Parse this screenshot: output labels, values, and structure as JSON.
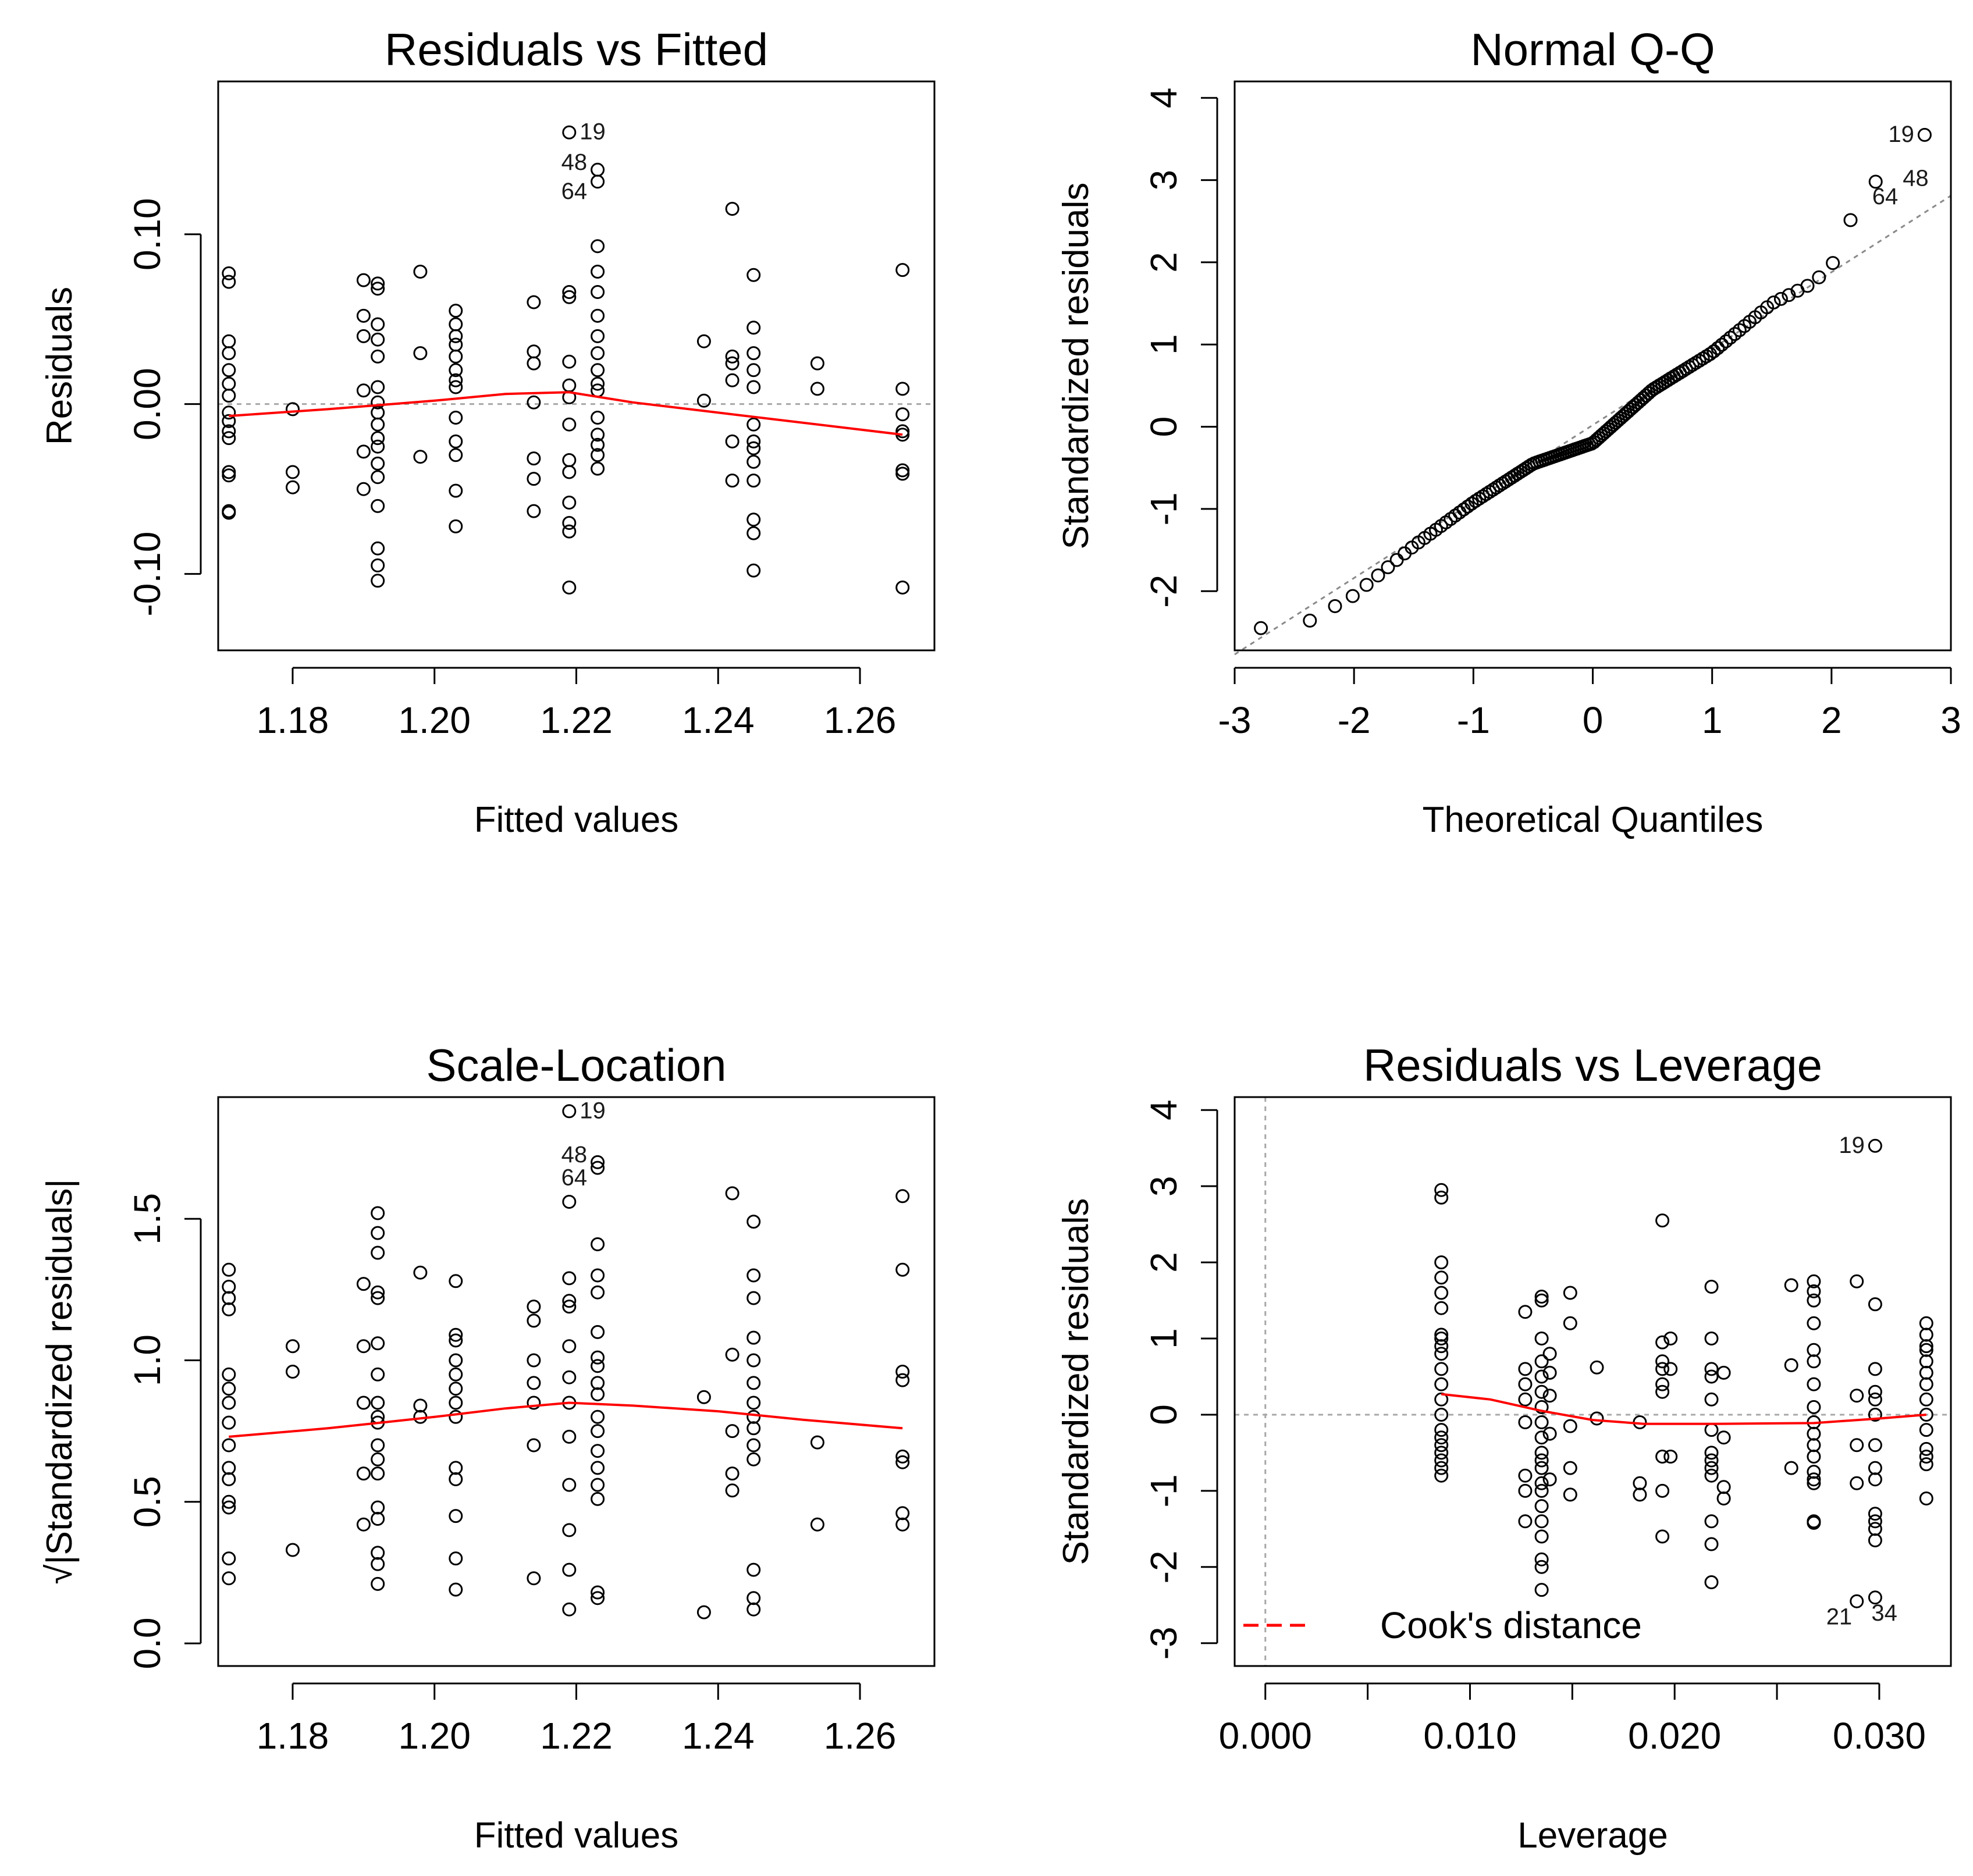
{
  "chart_data": [
    {
      "id": "rvf",
      "type": "scatter",
      "title": "Residuals vs Fitted",
      "xlabel": "Fitted values",
      "ylabel": "Residuals",
      "xlim": [
        1.1695,
        1.2705
      ],
      "ylim": [
        -0.145,
        0.19
      ],
      "xticks": [
        1.18,
        1.2,
        1.22,
        1.24,
        1.26
      ],
      "xtick_labels": [
        "1.18",
        "1.20",
        "1.22",
        "1.24",
        "1.26"
      ],
      "yticks": [
        -0.1,
        0.0,
        0.1
      ],
      "ytick_labels": [
        "-0.10",
        "0.00",
        "0.10"
      ],
      "ref_line": {
        "y": 0
      },
      "columns": [
        {
          "x": 1.171,
          "y": [
            0.077,
            0.072,
            0.037,
            0.03,
            0.02,
            0.012,
            0.005,
            -0.005,
            -0.01,
            -0.016,
            -0.02,
            -0.04,
            -0.042,
            -0.063,
            -0.064
          ]
        },
        {
          "x": 1.18,
          "y": [
            -0.003,
            -0.04,
            -0.049
          ]
        },
        {
          "x": 1.19,
          "y": [
            0.073,
            0.052,
            0.04,
            0.008,
            -0.028,
            -0.05
          ]
        },
        {
          "x": 1.192,
          "y": [
            0.071,
            0.068,
            0.047,
            0.038,
            0.028,
            0.01,
            0.001,
            -0.005,
            -0.012,
            -0.02,
            -0.025,
            -0.035,
            -0.043,
            -0.06,
            -0.085,
            -0.095,
            -0.104
          ]
        },
        {
          "x": 1.198,
          "y": [
            0.078,
            0.03,
            -0.031
          ]
        },
        {
          "x": 1.203,
          "y": [
            0.055,
            0.047,
            0.04,
            0.035,
            0.028,
            0.02,
            0.014,
            0.01,
            -0.008,
            -0.022,
            -0.03,
            -0.051,
            -0.072
          ]
        },
        {
          "x": 1.214,
          "y": [
            0.06,
            0.031,
            0.024,
            0.001,
            -0.032,
            -0.044,
            -0.063
          ]
        },
        {
          "x": 1.219,
          "y": [
            0.16,
            0.066,
            0.063,
            0.025,
            0.011,
            0.004,
            -0.012,
            -0.033,
            -0.04,
            -0.058,
            -0.07,
            -0.075,
            -0.108
          ]
        },
        {
          "x": 1.223,
          "y": [
            0.138,
            0.131,
            0.093,
            0.078,
            0.066,
            0.052,
            0.04,
            0.03,
            0.02,
            0.012,
            0.008,
            -0.008,
            -0.018,
            -0.024,
            -0.03,
            -0.038
          ]
        },
        {
          "x": 1.238,
          "y": [
            0.037,
            0.002
          ]
        },
        {
          "x": 1.242,
          "y": [
            0.115,
            0.028,
            0.024,
            0.014,
            -0.022,
            -0.045
          ]
        },
        {
          "x": 1.245,
          "y": [
            0.076,
            0.045,
            0.03,
            0.02,
            0.01,
            -0.012,
            -0.022,
            -0.026,
            -0.034,
            -0.045,
            -0.068,
            -0.076,
            -0.098
          ]
        },
        {
          "x": 1.254,
          "y": [
            0.024,
            0.009
          ]
        },
        {
          "x": 1.266,
          "y": [
            0.079,
            0.009,
            -0.006,
            -0.016,
            -0.018,
            -0.039,
            -0.041,
            -0.108
          ]
        }
      ],
      "smoother": {
        "x": [
          1.171,
          1.185,
          1.2,
          1.21,
          1.219,
          1.228,
          1.238,
          1.25,
          1.266
        ],
        "y": [
          -0.007,
          -0.003,
          0.002,
          0.006,
          0.007,
          0.001,
          -0.004,
          -0.01,
          -0.018
        ]
      },
      "annotations": [
        {
          "text": "19",
          "x": 1.219,
          "y": 0.16
        },
        {
          "text": "48",
          "x": 1.223,
          "y": 0.138
        },
        {
          "text": "64",
          "x": 1.223,
          "y": 0.131
        }
      ]
    },
    {
      "id": "qq",
      "type": "scatter",
      "title": "Normal Q-Q",
      "xlabel": "Theoretical Quantiles",
      "ylabel": "Standardized residuals",
      "xlim": [
        -3,
        3
      ],
      "ylim": [
        -2.72,
        4.2
      ],
      "xticks": [
        -3,
        -2,
        -1,
        0,
        1,
        2,
        3
      ],
      "xtick_labels": [
        "-3",
        "-2",
        "-1",
        "0",
        "1",
        "2",
        "3"
      ],
      "yticks": [
        -2,
        -1,
        0,
        1,
        2,
        3,
        4
      ],
      "ytick_labels": [
        "-2",
        "-1",
        "0",
        "1",
        "2",
        "3",
        "4"
      ],
      "ref_line": {
        "intercept": 0.02,
        "slope": 0.93
      },
      "quantile_curve": {
        "x": [
          -2.78,
          -2.42,
          -2.0,
          -1.5,
          -1.0,
          -0.5,
          0.0,
          0.5,
          1.0,
          1.5,
          1.85,
          2.05,
          2.25,
          2.4,
          2.78
        ],
        "y": [
          -2.45,
          -2.4,
          -2.05,
          -1.45,
          -0.92,
          -0.45,
          -0.2,
          0.45,
          0.9,
          1.5,
          1.75,
          2.05,
          2.9,
          3.0,
          3.55
        ]
      },
      "n_points": 130,
      "annotations": [
        {
          "text": "19",
          "x": 2.78,
          "y": 3.55
        },
        {
          "text": "48",
          "x": 2.45,
          "y": 3.0
        },
        {
          "text": "64",
          "x": 2.38,
          "y": 2.92
        }
      ]
    },
    {
      "id": "sl",
      "type": "scatter",
      "title": "Scale-Location",
      "xlabel": "Fitted values",
      "ylabel": "√|Standardized residuals|",
      "xlim": [
        1.1695,
        1.2705
      ],
      "ylim": [
        -0.08,
        1.93
      ],
      "xticks": [
        1.18,
        1.2,
        1.22,
        1.24,
        1.26
      ],
      "xtick_labels": [
        "1.18",
        "1.20",
        "1.22",
        "1.24",
        "1.26"
      ],
      "yticks": [
        0.0,
        0.5,
        1.0,
        1.5
      ],
      "ytick_labels": [
        "0.0",
        "0.5",
        "1.0",
        "1.5"
      ],
      "columns": [
        {
          "x": 1.171,
          "y": [
            1.32,
            1.26,
            1.22,
            1.18,
            0.95,
            0.9,
            0.85,
            0.78,
            0.7,
            0.62,
            0.58,
            0.5,
            0.48,
            0.3,
            0.23
          ]
        },
        {
          "x": 1.18,
          "y": [
            1.05,
            0.96,
            0.33
          ]
        },
        {
          "x": 1.19,
          "y": [
            1.27,
            1.05,
            0.85,
            0.6,
            0.42
          ]
        },
        {
          "x": 1.192,
          "y": [
            1.52,
            1.45,
            1.38,
            1.24,
            1.22,
            1.06,
            0.95,
            0.85,
            0.8,
            0.78,
            0.7,
            0.65,
            0.6,
            0.48,
            0.44,
            0.32,
            0.28,
            0.21
          ]
        },
        {
          "x": 1.198,
          "y": [
            1.31,
            0.84,
            0.8
          ]
        },
        {
          "x": 1.203,
          "y": [
            1.28,
            1.09,
            1.07,
            1.0,
            0.95,
            0.9,
            0.85,
            0.8,
            0.62,
            0.58,
            0.45,
            0.3,
            0.19
          ]
        },
        {
          "x": 1.214,
          "y": [
            1.19,
            1.14,
            1.0,
            0.92,
            0.85,
            0.7,
            0.23
          ]
        },
        {
          "x": 1.219,
          "y": [
            1.88,
            1.56,
            1.29,
            1.21,
            1.19,
            1.05,
            0.94,
            0.85,
            0.73,
            0.56,
            0.4,
            0.26,
            0.12
          ]
        },
        {
          "x": 1.223,
          "y": [
            1.7,
            1.68,
            1.41,
            1.3,
            1.24,
            1.1,
            1.01,
            0.98,
            0.92,
            0.88,
            0.8,
            0.75,
            0.68,
            0.62,
            0.56,
            0.51,
            0.18,
            0.16
          ]
        },
        {
          "x": 1.238,
          "y": [
            0.87,
            0.11
          ]
        },
        {
          "x": 1.242,
          "y": [
            1.59,
            1.02,
            0.75,
            0.6,
            0.54
          ]
        },
        {
          "x": 1.245,
          "y": [
            1.49,
            1.3,
            1.22,
            1.08,
            1.0,
            0.92,
            0.85,
            0.8,
            0.76,
            0.7,
            0.65,
            0.26,
            0.16,
            0.12
          ]
        },
        {
          "x": 1.254,
          "y": [
            0.71,
            0.42
          ]
        },
        {
          "x": 1.266,
          "y": [
            1.58,
            1.32,
            0.96,
            0.93,
            0.66,
            0.64,
            0.46,
            0.42
          ]
        }
      ],
      "smoother": {
        "x": [
          1.171,
          1.185,
          1.2,
          1.21,
          1.219,
          1.228,
          1.24,
          1.252,
          1.266
        ],
        "y": [
          0.73,
          0.76,
          0.8,
          0.83,
          0.85,
          0.84,
          0.82,
          0.79,
          0.76
        ]
      },
      "annotations": [
        {
          "text": "19",
          "x": 1.219,
          "y": 1.88
        },
        {
          "text": "48",
          "x": 1.223,
          "y": 1.7
        },
        {
          "text": "64",
          "x": 1.223,
          "y": 1.68
        }
      ]
    },
    {
      "id": "rvl",
      "type": "scatter",
      "title": "Residuals vs Leverage",
      "xlabel": "Leverage",
      "ylabel": "Standardized residuals",
      "xlim": [
        -0.0015,
        0.0335
      ],
      "ylim": [
        -3.3,
        4.17
      ],
      "xticks": [
        0.0,
        0.005,
        0.01,
        0.015,
        0.02,
        0.025,
        0.03
      ],
      "xtick_labels": [
        "0.000",
        "",
        "0.010",
        "",
        "0.020",
        "",
        "0.030"
      ],
      "yticks": [
        -3,
        -2,
        -1,
        0,
        1,
        2,
        3,
        4
      ],
      "ytick_labels": [
        "-3",
        "-2",
        "-1",
        "0",
        "1",
        "2",
        "3",
        "4"
      ],
      "ref_lines": {
        "y": 0,
        "x": 0
      },
      "columns": [
        {
          "x": 0.0086,
          "y": [
            2.95,
            2.85,
            2.0,
            1.8,
            1.6,
            1.4,
            1.05,
            1.0,
            0.9,
            0.8,
            0.6,
            0.4,
            0.2,
            0.0,
            -0.2,
            -0.3,
            -0.4,
            -0.5,
            -0.6,
            -0.7,
            -0.8
          ]
        },
        {
          "x": 0.0127,
          "y": [
            1.35,
            0.6,
            0.4,
            0.2,
            -0.1,
            -0.8,
            -1.0,
            -1.4
          ]
        },
        {
          "x": 0.0135,
          "y": [
            1.55,
            1.5,
            1.0,
            0.7,
            0.5,
            0.3,
            0.1,
            -0.1,
            -0.3,
            -0.5,
            -0.6,
            -0.7,
            -0.9,
            -1.0,
            -1.2,
            -1.4,
            -1.6,
            -1.9,
            -2.0,
            -2.3
          ]
        },
        {
          "x": 0.0139,
          "y": [
            0.8,
            0.55,
            0.25,
            -0.25,
            -0.85
          ]
        },
        {
          "x": 0.0149,
          "y": [
            1.6,
            1.2,
            -0.15,
            -0.7,
            -1.05
          ]
        },
        {
          "x": 0.0162,
          "y": [
            0.62,
            -0.05
          ]
        },
        {
          "x": 0.0183,
          "y": [
            -0.1,
            -0.9,
            -1.05
          ]
        },
        {
          "x": 0.0194,
          "y": [
            2.55,
            0.95,
            0.7,
            0.6,
            0.4,
            0.3,
            -0.55,
            -1.0,
            -1.6
          ]
        },
        {
          "x": 0.0198,
          "y": [
            1.0,
            0.6,
            -0.55
          ]
        },
        {
          "x": 0.0218,
          "y": [
            1.68,
            1.0,
            0.6,
            0.5,
            0.2,
            -0.2,
            -0.5,
            -0.6,
            -0.7,
            -0.8,
            -1.4,
            -1.7,
            -2.2
          ]
        },
        {
          "x": 0.0224,
          "y": [
            0.55,
            -0.3,
            -0.95,
            -1.1
          ]
        },
        {
          "x": 0.0257,
          "y": [
            1.7,
            0.65,
            -0.7
          ]
        },
        {
          "x": 0.0268,
          "y": [
            1.75,
            1.62,
            1.5,
            1.2,
            0.85,
            0.7,
            0.4,
            0.1,
            -0.1,
            -0.25,
            -0.4,
            -0.55,
            -0.75,
            -0.85,
            -0.9,
            -1.4,
            -1.42
          ]
        },
        {
          "x": 0.0289,
          "y": [
            1.75,
            0.25,
            -0.4,
            -0.9,
            -2.45
          ]
        },
        {
          "x": 0.0298,
          "y": [
            3.53,
            1.45,
            0.6,
            0.3,
            0.2,
            0.0,
            -0.4,
            -0.7,
            -0.85,
            -1.3,
            -1.4,
            -1.5,
            -1.65,
            -2.4
          ]
        },
        {
          "x": 0.0323,
          "y": [
            1.2,
            1.05,
            0.9,
            0.85,
            0.7,
            0.55,
            0.4,
            0.2,
            0.0,
            -0.2,
            -0.45,
            -0.55,
            -0.65,
            -1.1
          ]
        }
      ],
      "smoother": {
        "x": [
          0.0086,
          0.011,
          0.0135,
          0.016,
          0.0185,
          0.022,
          0.0268,
          0.03,
          0.0323
        ],
        "y": [
          0.27,
          0.2,
          0.05,
          -0.07,
          -0.12,
          -0.12,
          -0.11,
          -0.05,
          0.0
        ]
      },
      "annotations": [
        {
          "text": "19",
          "x": 0.0298,
          "y": 3.53
        },
        {
          "text": "21",
          "x": 0.0289,
          "y": -2.45
        },
        {
          "text": "34",
          "x": 0.0298,
          "y": -2.4
        }
      ],
      "legend": {
        "label": "Cook's distance",
        "position": "bottom-left",
        "color": "#ff0000"
      }
    }
  ],
  "colors": {
    "smoother": "#ff0000",
    "reference": "#a8a8a8",
    "points": "#000000",
    "background": "#ffffff"
  }
}
